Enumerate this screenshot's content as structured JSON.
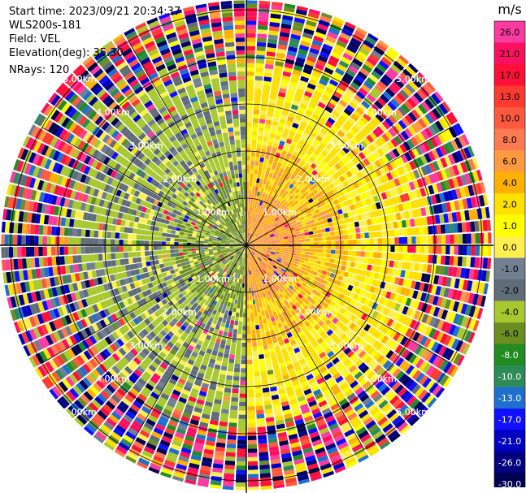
{
  "info": {
    "start_time": "Start time: 2023/09/21 20:34:37",
    "site": "WLS200s-181",
    "field": "Field: VEL",
    "elevation": "Elevation(deg): 35.30",
    "nrays": "NRays: 120"
  },
  "colorbar": {
    "unit": "m/s",
    "ticks": [
      "26.0",
      "21.0",
      "17.0",
      "13.0",
      "10.0",
      "8.0",
      "6.0",
      "4.0",
      "2.0",
      "1.0",
      "0.0",
      "-1.0",
      "-2.0",
      "-4.0",
      "-6.0",
      "-8.0",
      "-10.0",
      "-13.0",
      "-17.0",
      "-21.0",
      "-26.0",
      "-30.0"
    ],
    "colors": [
      "#ff3aa0",
      "#ff1060",
      "#ff1038",
      "#ff3a30",
      "#ff5a40",
      "#ff7a50",
      "#ff9a40",
      "#ffb000",
      "#ffe000",
      "#ffff00",
      "#fff050",
      "#708090",
      "#606c78",
      "#a8c830",
      "#6b8e23",
      "#228b22",
      "#2e8b57",
      "#1e6fd0",
      "#1010ff",
      "#0000c0",
      "#000080",
      "#000050"
    ]
  },
  "chart_data": {
    "type": "ppi",
    "field": "VEL",
    "units": "m/s",
    "nrays": 120,
    "elevation_deg": 35.3,
    "max_range_km": 5.2,
    "range_ring_km": [
      1,
      2,
      3,
      4,
      5
    ],
    "range_ring_labels": [
      "1.00km",
      "2.00km",
      "3.00km",
      "4.00km",
      "5.00km"
    ],
    "diagonal_label_bearings_deg": [
      45,
      135,
      225,
      315
    ],
    "color_scale": {
      "bounds": [
        -30,
        -26,
        -21,
        -17,
        -13,
        -10,
        -8,
        -6,
        -4,
        -2,
        -1,
        0,
        1,
        2,
        4,
        6,
        8,
        10,
        13,
        17,
        21,
        26,
        30
      ]
    },
    "wind_pattern": {
      "near_range_km": 3.9,
      "positive_sector_deg": [
        0,
        180
      ],
      "positive_core_ms": 5.5,
      "negative_sector_deg": [
        180,
        360
      ],
      "negative_core_ms": -3.0,
      "far_range": "noisy / random"
    }
  }
}
